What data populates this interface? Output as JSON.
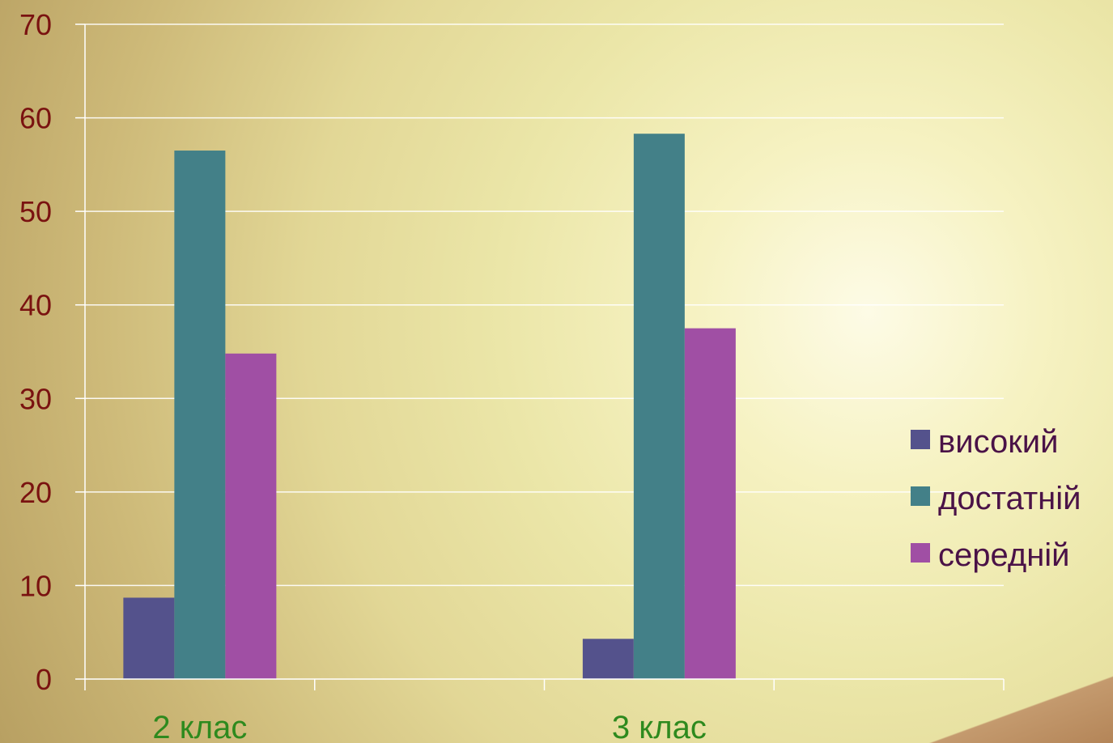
{
  "chart_data": {
    "type": "bar",
    "categories": [
      "2 клас",
      "3 клас"
    ],
    "series": [
      {
        "name": "високий",
        "color": "#54528c",
        "values": [
          8.7,
          4.3
        ]
      },
      {
        "name": "достатній",
        "color": "#438088",
        "values": [
          56.5,
          58.3
        ]
      },
      {
        "name": "середній",
        "color": "#a04fa4",
        "values": [
          34.8,
          37.5
        ]
      }
    ],
    "ylim": [
      0,
      70
    ],
    "yticks": [
      0,
      10,
      20,
      30,
      40,
      50,
      60,
      70
    ],
    "grid": true,
    "legend": "right"
  }
}
